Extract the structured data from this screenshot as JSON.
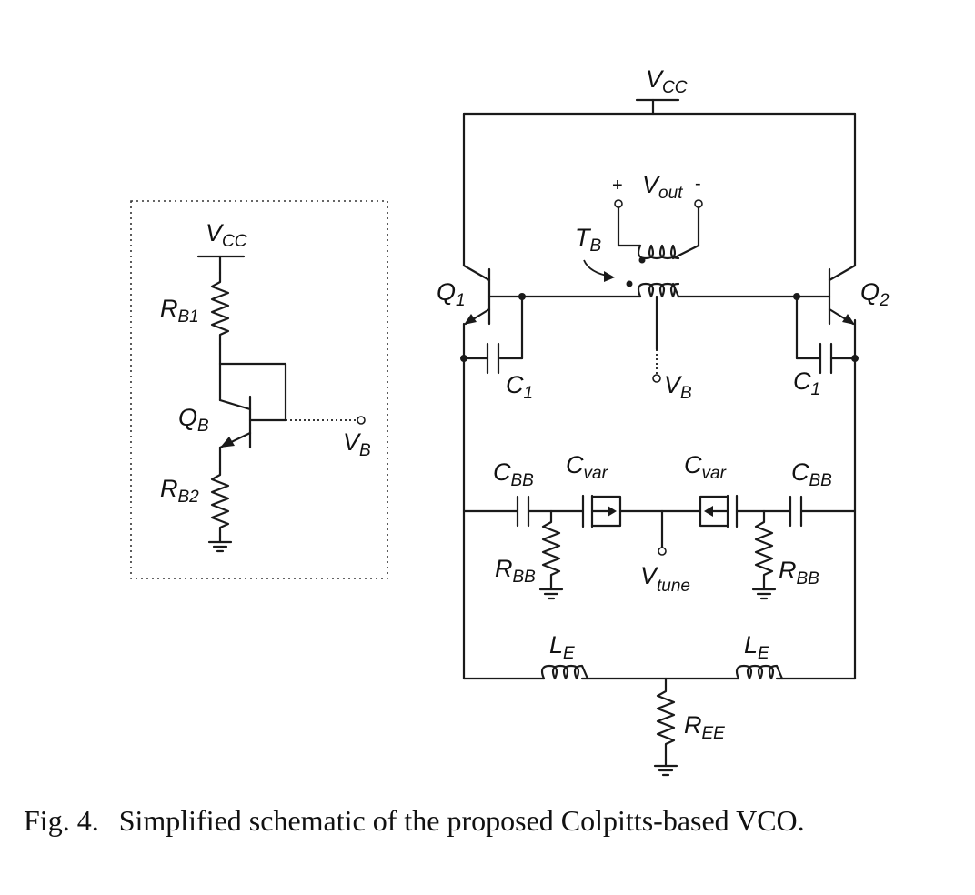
{
  "caption": {
    "figure_number": "Fig. 4.",
    "text": "Simplified schematic of the proposed Colpitts-based VCO."
  },
  "labels": {
    "vcc_main": {
      "main": "V",
      "sub": "CC"
    },
    "vcc_bias": {
      "main": "V",
      "sub": "CC"
    },
    "vout": {
      "main": "V",
      "sub": "out"
    },
    "vout_plus": "+",
    "vout_minus": "-",
    "tb": {
      "main": "T",
      "sub": "B"
    },
    "q1": {
      "main": "Q",
      "sub": "1"
    },
    "q2": {
      "main": "Q",
      "sub": "2"
    },
    "qb": {
      "main": "Q",
      "sub": "B"
    },
    "rb1": {
      "main": "R",
      "sub": "B1"
    },
    "rb2": {
      "main": "R",
      "sub": "B2"
    },
    "vb_bias": {
      "main": "V",
      "sub": "B"
    },
    "vb_main": {
      "main": "V",
      "sub": "B"
    },
    "c1_left": {
      "main": "C",
      "sub": "1"
    },
    "c1_right": {
      "main": "C",
      "sub": "1"
    },
    "cbb_left": {
      "main": "C",
      "sub": "BB"
    },
    "cbb_right": {
      "main": "C",
      "sub": "BB"
    },
    "cvar_left": {
      "main": "C",
      "sub": "var"
    },
    "cvar_right": {
      "main": "C",
      "sub": "var"
    },
    "rbb_left": {
      "main": "R",
      "sub": "BB"
    },
    "rbb_right": {
      "main": "R",
      "sub": "BB"
    },
    "vtune": {
      "main": "V",
      "sub": "tune"
    },
    "le_left": {
      "main": "L",
      "sub": "E"
    },
    "le_right": {
      "main": "L",
      "sub": "E"
    },
    "ree": {
      "main": "R",
      "sub": "EE"
    }
  }
}
